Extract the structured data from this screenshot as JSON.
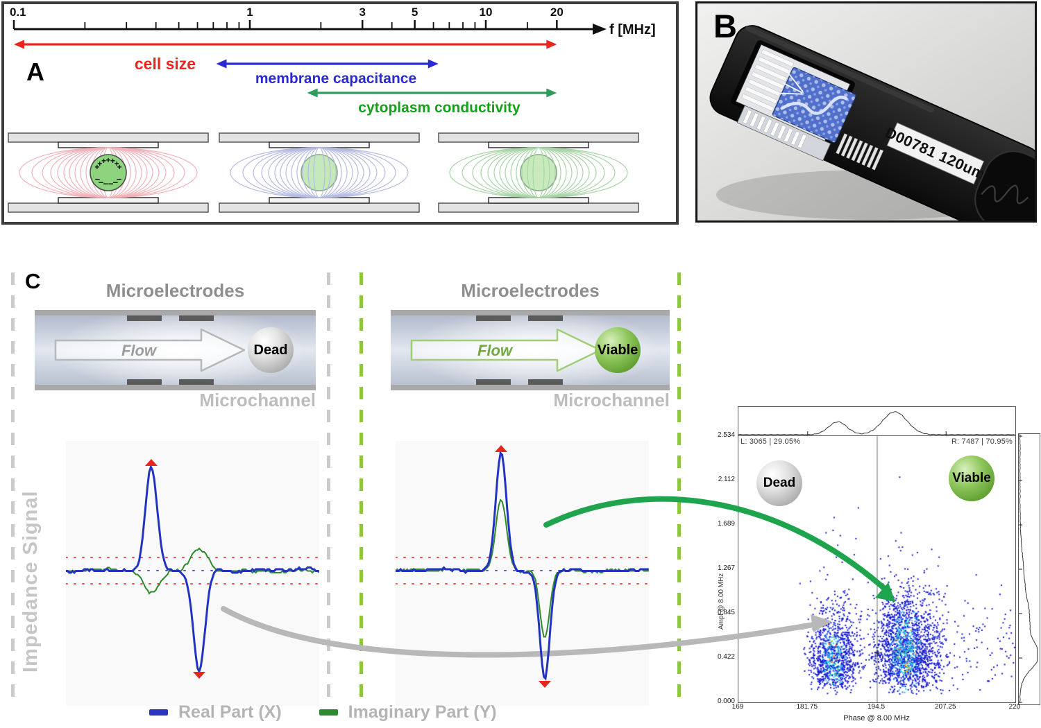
{
  "figure": {
    "panel_a_label": "A",
    "panel_b_label": "B",
    "panel_c_label": "C"
  },
  "panel_a": {
    "axis": {
      "unit": "f [MHz]",
      "major_ticks": [
        "0.1",
        "1",
        "3",
        "5",
        "10",
        "20"
      ],
      "major_values": [
        0.1,
        1,
        3,
        5,
        10,
        20
      ],
      "minor_values": [
        0.2,
        0.3,
        0.4,
        0.5,
        0.6,
        0.7,
        0.8,
        0.9,
        2,
        4,
        6,
        7,
        8,
        9,
        15
      ]
    },
    "ranges": [
      {
        "label": "cell size",
        "color": "#e8251f",
        "from_mhz": 0.1,
        "to_mhz": 20
      },
      {
        "label": "membrane capacitance",
        "color": "#2a2ad5",
        "from_mhz": 0.72,
        "to_mhz": 6.3
      },
      {
        "label": "cytoplasm conductivity",
        "color": "#2f9c5c",
        "label_color": "#14a019",
        "from_mhz": 1.75,
        "to_mhz": 20
      }
    ],
    "field_diagrams": [
      {
        "name": "low-frequency-field-around-cell",
        "line_color": "#f0b3ba",
        "cell_fill": "#8ed47f",
        "cell_stroke": "#4a4a4a",
        "charged": true
      },
      {
        "name": "mid-frequency-field-partial",
        "line_color": "#b6bbe2",
        "cell_fill": "#c5e9bb",
        "cell_stroke": "#8aa98a",
        "charged": false
      },
      {
        "name": "high-frequency-field-through-cell",
        "line_color": "#a9d4a7",
        "cell_fill": "#c9eabc",
        "cell_stroke": "#84a884",
        "charged": false
      }
    ]
  },
  "panel_b": {
    "chip_label": "D00781 120um"
  },
  "panel_c": {
    "impedance_axis_label": "Impedance Signal",
    "channels": [
      {
        "title": "Microelectrodes",
        "flow_label": "Flow",
        "cell_label": "Dead",
        "footer": "Microchannel",
        "accent": "#b7b7b7",
        "flow_text_color": "#9c9c9c"
      },
      {
        "title": "Microelectrodes",
        "flow_label": "Flow",
        "cell_label": "Viable",
        "footer": "Microchannel",
        "accent": "#9fce77",
        "flow_text_color": "#6fa83f"
      }
    ],
    "legend": [
      {
        "label": "Real Part (X)",
        "color": "#2a35c4"
      },
      {
        "label": "Imaginary Part (Y)",
        "color": "#2d8a2d"
      }
    ]
  },
  "chart_data": [
    {
      "type": "line",
      "name": "dead-cell-impedance-signal",
      "series": [
        {
          "name": "Real Part (X)",
          "color": "#2233c0",
          "shape": "positive-peak-then-negative-peak",
          "relative_amplitude": 1.0
        },
        {
          "name": "Imaginary Part (Y)",
          "color": "#2d8a2d",
          "shape": "anti-phase",
          "relative_amplitude": 0.22
        }
      ],
      "baseline": 0,
      "thresholds": [
        0.12,
        -0.12
      ],
      "peak_markers": "red-arrowheads"
    },
    {
      "type": "line",
      "name": "viable-cell-impedance-signal",
      "series": [
        {
          "name": "Real Part (X)",
          "color": "#2233c0",
          "shape": "positive-peak-then-negative-peak",
          "relative_amplitude": 1.0
        },
        {
          "name": "Imaginary Part (Y)",
          "color": "#2d8a2d",
          "shape": "in-phase",
          "relative_amplitude": 0.6
        }
      ],
      "baseline": 0,
      "thresholds": [
        0.12,
        -0.12
      ],
      "peak_markers": "red-arrowheads"
    },
    {
      "type": "scatter",
      "name": "viability-density-plot",
      "xlabel": "Phase @ 8.00 MHz",
      "ylabel": "Ampl @ 8.00 MHz",
      "xlim": [
        169,
        220
      ],
      "ylim": [
        0,
        2.534
      ],
      "x_ticks": [
        "169",
        "181.75",
        "194.5",
        "207.25",
        "220"
      ],
      "y_ticks": [
        "0.000",
        "0.422",
        "0.845",
        "1.267",
        "1.689",
        "2.112",
        "2.534"
      ],
      "gate_x": 194.5,
      "stats_left": "L: 3065 | 29.05%",
      "stats_right": "R: 7487 | 70.95%",
      "cluster_labels": [
        {
          "label": "Dead"
        },
        {
          "label": "Viable"
        }
      ],
      "clusters": [
        {
          "name": "Dead",
          "count": 3065,
          "phase_mean": 186.6,
          "phase_sd": 2.3,
          "ampl_mode": 0.42,
          "render_n": 1080
        },
        {
          "name": "Viable",
          "count": 7487,
          "phase_mean": 199.8,
          "phase_sd": 3.1,
          "ampl_mode": 0.5,
          "render_n": 1980
        }
      ],
      "top_marginal_peaks": [
        {
          "phase": 187.3,
          "height": 0.56,
          "width": 2.4
        },
        {
          "phase": 197.8,
          "height": 1.0,
          "width": 3.2
        }
      ],
      "right_marginal_peaks": [
        {
          "ampl": 0.44,
          "height": 1.0,
          "width": 0.17
        },
        {
          "ampl": 0.78,
          "height": 0.5,
          "width": 0.26
        },
        {
          "ampl": 1.2,
          "height": 0.2,
          "width": 0.32
        }
      ]
    }
  ]
}
